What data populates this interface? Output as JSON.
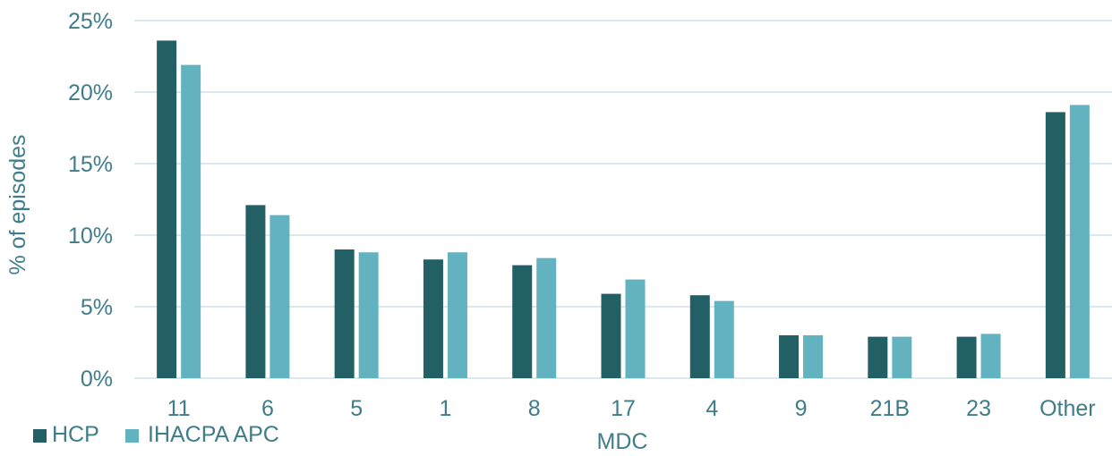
{
  "chart_data": {
    "type": "bar",
    "title": "",
    "xlabel": "MDC",
    "ylabel": "% of episodes",
    "categories": [
      "11",
      "6",
      "5",
      "1",
      "8",
      "17",
      "4",
      "9",
      "21B",
      "23",
      "Other"
    ],
    "series": [
      {
        "name": "HCP",
        "color": "#236066",
        "values": [
          23.6,
          12.1,
          9.0,
          8.3,
          7.9,
          5.9,
          5.8,
          3.0,
          2.9,
          2.9,
          18.6
        ]
      },
      {
        "name": "IHACPA APC",
        "color": "#62B3BF",
        "values": [
          21.9,
          11.4,
          8.8,
          8.8,
          8.4,
          6.9,
          5.4,
          3.0,
          2.9,
          3.1,
          19.1
        ]
      }
    ],
    "ylim": [
      0,
      25
    ],
    "yticks": [
      0,
      5,
      10,
      15,
      20,
      25
    ],
    "ytick_labels": [
      "0%",
      "5%",
      "10%",
      "15%",
      "20%",
      "25%"
    ],
    "grid": true,
    "legend_position": "bottom-left",
    "text_color": "#3E7D89",
    "grid_color": "#D0E2E5"
  }
}
